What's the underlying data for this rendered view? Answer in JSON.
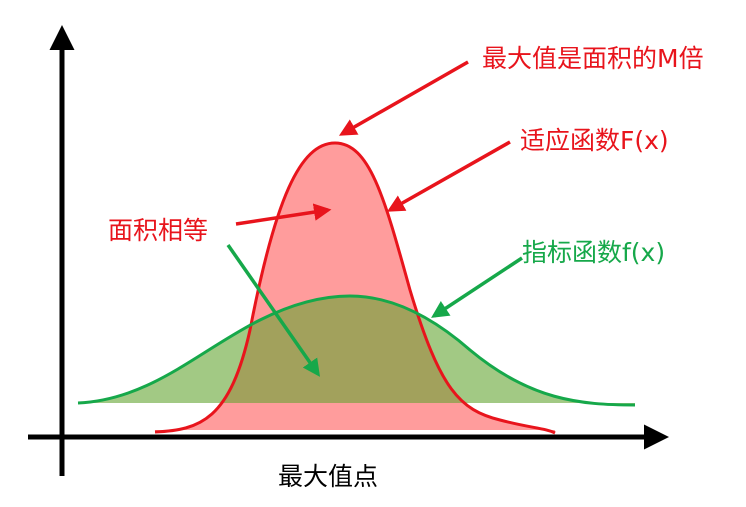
{
  "annotations": {
    "max_ratio": "最大值是面积的M倍",
    "fit_function": "适应函数F(x)",
    "equal_area": "面积相等",
    "index_function": "指标函数f(x)"
  },
  "x_label": "最大值点"
}
